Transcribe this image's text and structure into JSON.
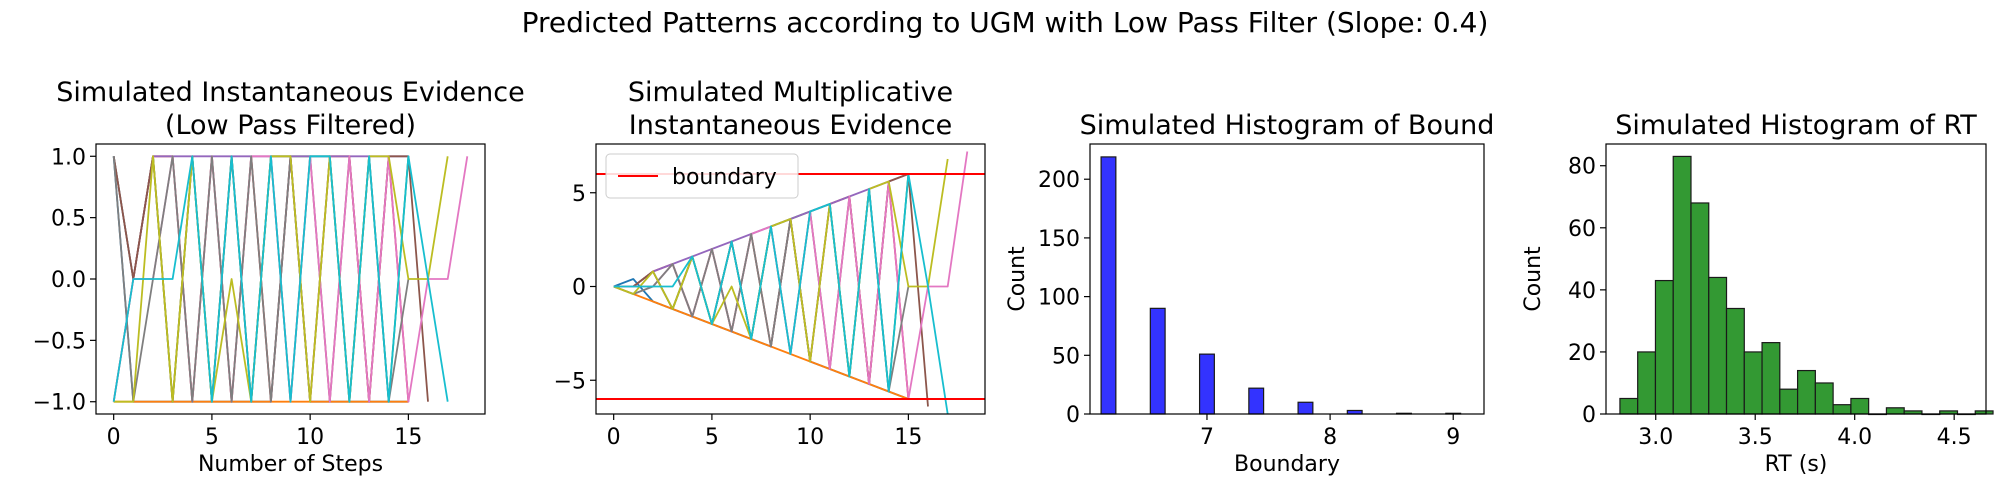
{
  "suptitle": "Predicted Patterns according to UGM with Low Pass Filter (Slope: 0.4)",
  "chart_data": [
    {
      "type": "line",
      "title": "Simulated Instantaneous Evidence\n(Low Pass Filtered)",
      "xlabel": "Number of Steps",
      "ylabel": "",
      "xlim": [
        -0.9,
        18.9
      ],
      "ylim": [
        -1.1,
        1.1
      ],
      "xticks": [
        0,
        5,
        10,
        15
      ],
      "xticklabels": [
        "0",
        "5",
        "10",
        "15"
      ],
      "yticks": [
        -1.0,
        -0.5,
        0.0,
        0.5,
        1.0
      ],
      "yticklabels": [
        "−1.0",
        "−0.5",
        "0.0",
        "0.5",
        "1.0"
      ],
      "grid": false,
      "series": [
        {
          "color": "#1f77b4",
          "x": [
            0,
            1,
            2,
            3,
            4,
            5,
            6,
            7,
            8,
            9,
            10,
            11,
            12,
            13,
            14,
            15
          ],
          "y": [
            1,
            -1,
            -1,
            -1,
            -1,
            -1,
            -1,
            -1,
            -1,
            1,
            -1,
            -1,
            -1,
            -1,
            -1,
            -1
          ]
        },
        {
          "color": "#ff7f0e",
          "x": [
            0,
            1,
            2,
            3,
            4,
            5,
            6,
            7,
            8,
            9,
            10,
            11,
            12,
            13,
            14,
            15
          ],
          "y": [
            -1,
            -1,
            -1,
            -1,
            -1,
            -1,
            -1,
            -1,
            -1,
            -1,
            -1,
            -1,
            -1,
            -1,
            -1,
            -1
          ]
        },
        {
          "color": "#2ca02c",
          "x": [
            0,
            1,
            2,
            3,
            4,
            5,
            6,
            7,
            8,
            9,
            10,
            11,
            12,
            13,
            14,
            15
          ],
          "y": [
            1,
            0,
            1,
            -1,
            1,
            -1,
            1,
            -1,
            1,
            1,
            1,
            1,
            -1,
            1,
            -1,
            1
          ]
        },
        {
          "color": "#d62728",
          "x": [
            0,
            1,
            2,
            3,
            4,
            5,
            6,
            7,
            8,
            9,
            10,
            11,
            12,
            13,
            14,
            15
          ],
          "y": [
            -1,
            0,
            1,
            1,
            -1,
            1,
            -1,
            1,
            -1,
            1,
            -1,
            1,
            1,
            -1,
            1,
            -1
          ]
        },
        {
          "color": "#9467bd",
          "x": [
            0,
            1,
            2,
            3,
            4,
            5,
            6,
            7,
            8,
            9,
            10,
            11,
            12,
            13,
            14,
            15
          ],
          "y": [
            1,
            0,
            1,
            1,
            1,
            1,
            1,
            1,
            1,
            1,
            1,
            1,
            1,
            1,
            1,
            1
          ]
        },
        {
          "color": "#8c564b",
          "x": [
            0,
            1,
            2,
            3,
            4,
            5,
            6,
            7,
            8,
            9,
            10,
            11,
            12,
            13,
            14,
            15,
            16
          ],
          "y": [
            1,
            0,
            1,
            -1,
            1,
            -1,
            1,
            -1,
            1,
            -1,
            1,
            -1,
            1,
            -1,
            1,
            1,
            -1
          ]
        },
        {
          "color": "#e377c2",
          "x": [
            0,
            1,
            2,
            3,
            4,
            5,
            6,
            7,
            8,
            9,
            10,
            11,
            12,
            13,
            14,
            15,
            16,
            17,
            18
          ],
          "y": [
            -1,
            0,
            0,
            1,
            -1,
            1,
            -1,
            1,
            1,
            -1,
            1,
            -1,
            1,
            -1,
            1,
            -1,
            0,
            0,
            1
          ]
        },
        {
          "color": "#7f7f7f",
          "x": [
            0,
            1,
            2,
            3,
            4,
            5,
            6,
            7,
            8,
            9,
            10,
            11,
            12,
            13,
            14,
            15
          ],
          "y": [
            1,
            -1,
            0,
            1,
            -1,
            1,
            -1,
            1,
            -1,
            1,
            -1,
            1,
            -1,
            1,
            -1,
            0
          ]
        },
        {
          "color": "#bcbd22",
          "x": [
            0,
            1,
            2,
            3,
            4,
            5,
            6,
            7,
            8,
            9,
            10,
            11,
            12,
            13,
            14,
            15,
            16,
            17
          ],
          "y": [
            -1,
            -1,
            1,
            -1,
            1,
            -1,
            0,
            -1,
            1,
            1,
            -1,
            1,
            -1,
            1,
            1,
            0,
            0,
            1
          ]
        },
        {
          "color": "#17becf",
          "x": [
            0,
            1,
            2,
            3,
            4,
            5,
            6,
            7,
            8,
            9,
            10,
            11,
            12,
            13,
            14,
            15,
            16,
            17
          ],
          "y": [
            -1,
            0,
            0,
            0,
            1,
            -1,
            1,
            -1,
            1,
            -1,
            1,
            1,
            -1,
            1,
            -1,
            1,
            0,
            -1
          ]
        }
      ]
    },
    {
      "type": "line",
      "title": "Simulated Multiplicative\nInstantaneous Evidence",
      "xlabel": "",
      "ylabel": "",
      "xlim": [
        -0.9,
        18.9
      ],
      "ylim": [
        -6.8,
        7.6
      ],
      "xticks": [
        0,
        5,
        10,
        15
      ],
      "xticklabels": [
        "0",
        "5",
        "10",
        "15"
      ],
      "yticks": [
        -5,
        0,
        5
      ],
      "yticklabels": [
        "−5",
        "0",
        "5"
      ],
      "grid": false,
      "legend": {
        "position": "top-left",
        "entries": [
          {
            "label": "boundary",
            "color": "#ff0000"
          }
        ]
      },
      "boundary": {
        "color": "#ff0000",
        "values": [
          6.0,
          -6.0
        ]
      },
      "series": [
        {
          "color": "#1f77b4",
          "x": [
            0,
            1,
            2,
            3,
            4,
            5,
            6,
            7,
            8,
            9,
            10,
            11,
            12,
            13,
            14,
            15
          ],
          "y": [
            0,
            0.4,
            -0.8,
            -1.2,
            -1.6,
            -2.0,
            -2.4,
            -2.8,
            -3.2,
            3.6,
            -4.0,
            -4.4,
            -4.8,
            -5.2,
            -5.6,
            -6.0
          ]
        },
        {
          "color": "#ff7f0e",
          "x": [
            0,
            1,
            2,
            3,
            4,
            5,
            6,
            7,
            8,
            9,
            10,
            11,
            12,
            13,
            14,
            15
          ],
          "y": [
            0,
            -0.4,
            -0.8,
            -1.2,
            -1.6,
            -2.0,
            -2.4,
            -2.8,
            -3.2,
            -3.6,
            -4.0,
            -4.4,
            -4.8,
            -5.2,
            -5.6,
            -6.0
          ]
        },
        {
          "color": "#2ca02c",
          "x": [
            0,
            1,
            2,
            3,
            4,
            5,
            6,
            7,
            8,
            9,
            10,
            11,
            12,
            13,
            14,
            15
          ],
          "y": [
            0,
            0,
            0.8,
            -1.2,
            1.6,
            -2.0,
            2.4,
            -2.8,
            3.2,
            3.6,
            4.0,
            4.4,
            -4.8,
            5.2,
            -5.6,
            6.0
          ]
        },
        {
          "color": "#d62728",
          "x": [
            0,
            1,
            2,
            3,
            4,
            5,
            6,
            7,
            8,
            9,
            10,
            11,
            12,
            13,
            14,
            15
          ],
          "y": [
            0,
            0,
            0.8,
            1.2,
            -1.6,
            2.0,
            -2.4,
            2.8,
            -3.2,
            3.6,
            -4.0,
            4.4,
            4.8,
            -5.2,
            5.6,
            -6.0
          ]
        },
        {
          "color": "#9467bd",
          "x": [
            0,
            1,
            2,
            3,
            4,
            5,
            6,
            7,
            8,
            9,
            10,
            11,
            12,
            13,
            14,
            15
          ],
          "y": [
            0,
            0,
            0.8,
            1.2,
            1.6,
            2.0,
            2.4,
            2.8,
            3.2,
            3.6,
            4.0,
            4.4,
            4.8,
            5.2,
            5.6,
            6.0
          ]
        },
        {
          "color": "#8c564b",
          "x": [
            0,
            1,
            2,
            3,
            4,
            5,
            6,
            7,
            8,
            9,
            10,
            11,
            12,
            13,
            14,
            15,
            16
          ],
          "y": [
            0,
            0,
            0.8,
            -1.2,
            1.6,
            -2.0,
            2.4,
            -2.8,
            3.2,
            -3.6,
            4.0,
            -4.4,
            4.8,
            -5.2,
            5.6,
            6.0,
            -6.4
          ]
        },
        {
          "color": "#e377c2",
          "x": [
            0,
            1,
            2,
            3,
            4,
            5,
            6,
            7,
            8,
            9,
            10,
            11,
            12,
            13,
            14,
            15,
            16,
            17,
            18
          ],
          "y": [
            0,
            0,
            0,
            1.2,
            -1.6,
            2.0,
            -2.4,
            2.8,
            3.2,
            -3.6,
            4.0,
            -4.4,
            4.8,
            -5.2,
            5.6,
            -6.0,
            0,
            0,
            7.2
          ]
        },
        {
          "color": "#7f7f7f",
          "x": [
            0,
            1,
            2,
            3,
            4,
            5,
            6,
            7,
            8,
            9,
            10,
            11,
            12,
            13,
            14,
            15
          ],
          "y": [
            0,
            -0.4,
            0,
            1.2,
            -1.6,
            2.0,
            -2.4,
            2.8,
            -3.2,
            3.6,
            -4.0,
            4.4,
            -4.8,
            5.2,
            -5.6,
            0
          ]
        },
        {
          "color": "#bcbd22",
          "x": [
            0,
            1,
            2,
            3,
            4,
            5,
            6,
            7,
            8,
            9,
            10,
            11,
            12,
            13,
            14,
            15,
            16,
            17
          ],
          "y": [
            0,
            -0.4,
            0.8,
            -1.2,
            1.6,
            -2.0,
            0,
            -2.8,
            3.2,
            3.6,
            -4.0,
            4.4,
            -4.8,
            5.2,
            5.6,
            0,
            0,
            6.8
          ]
        },
        {
          "color": "#17becf",
          "x": [
            0,
            1,
            2,
            3,
            4,
            5,
            6,
            7,
            8,
            9,
            10,
            11,
            12,
            13,
            14,
            15,
            16,
            17
          ],
          "y": [
            0,
            0,
            0,
            0,
            1.6,
            -2.0,
            2.4,
            -2.8,
            3.2,
            -3.6,
            4.0,
            4.4,
            -4.8,
            5.2,
            -5.6,
            6.0,
            0,
            -6.8
          ]
        }
      ]
    },
    {
      "type": "bar",
      "title": "Simulated Histogram of Bound",
      "xlabel": "Boundary",
      "ylabel": "Count",
      "xlim": [
        6.05,
        9.25
      ],
      "ylim": [
        0,
        230
      ],
      "xticks": [
        7,
        8,
        9
      ],
      "xticklabels": [
        "7",
        "8",
        "9"
      ],
      "yticks": [
        0,
        50,
        100,
        150,
        200
      ],
      "yticklabels": [
        "0",
        "50",
        "100",
        "150",
        "200"
      ],
      "grid": false,
      "bar_color": "#3333ff",
      "edge_color": "#1a1a1a",
      "bin_width": 0.12,
      "bins": [
        {
          "x": 6.2,
          "count": 219
        },
        {
          "x": 6.6,
          "count": 90
        },
        {
          "x": 7.0,
          "count": 51
        },
        {
          "x": 7.4,
          "count": 22
        },
        {
          "x": 7.8,
          "count": 10
        },
        {
          "x": 8.2,
          "count": 3
        },
        {
          "x": 8.6,
          "count": 0.6
        },
        {
          "x": 9.0,
          "count": 0.6
        }
      ]
    },
    {
      "type": "bar",
      "title": "Simulated Histogram of RT",
      "xlabel": "RT (s)",
      "ylabel": "Count",
      "xlim": [
        2.75,
        4.66
      ],
      "ylim": [
        0,
        87
      ],
      "xticks": [
        3.0,
        3.5,
        4.0,
        4.5
      ],
      "xticklabels": [
        "3.0",
        "3.5",
        "4.0",
        "4.5"
      ],
      "yticks": [
        0,
        20,
        40,
        60,
        80
      ],
      "yticklabels": [
        "0",
        "20",
        "40",
        "60",
        "80"
      ],
      "grid": false,
      "bar_color": "#339933",
      "edge_color": "#1a1a1a",
      "bin_start": 2.82,
      "bin_width": 0.0893,
      "counts": [
        5,
        20,
        43,
        83,
        68,
        44,
        34,
        20,
        23,
        8,
        14,
        10,
        3,
        5,
        0,
        2,
        1,
        0,
        1,
        0,
        1
      ]
    }
  ]
}
